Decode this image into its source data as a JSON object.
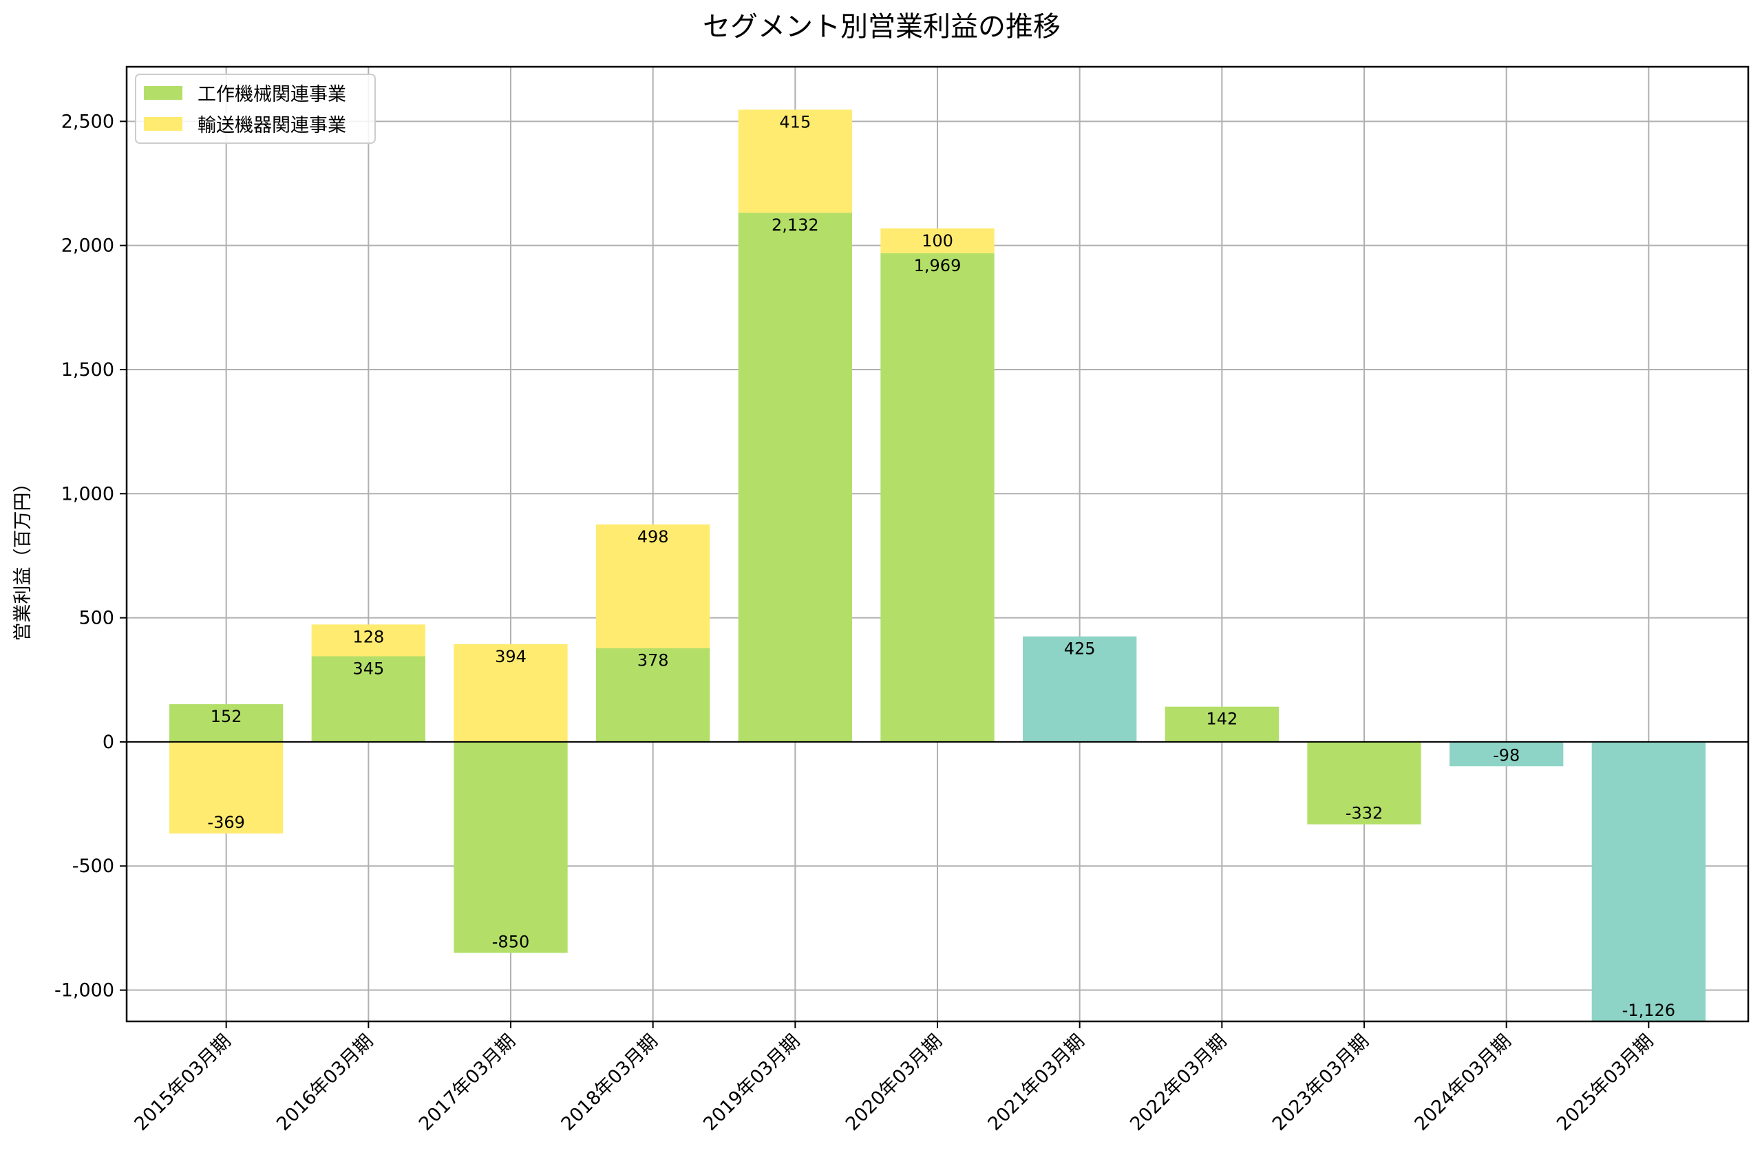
{
  "chart_data": {
    "type": "bar",
    "stacked": true,
    "title": "セグメント別営業利益の推移",
    "xlabel": "",
    "ylabel": "営業利益（百万円）",
    "ylim": [
      -1126,
      2720
    ],
    "yticks": [
      -1000,
      -500,
      0,
      500,
      1000,
      1500,
      2000,
      2500
    ],
    "ytick_labels": [
      "-1,000",
      "-500",
      "0",
      "500",
      "1,000",
      "1,500",
      "2,000",
      "2,500"
    ],
    "grid": true,
    "legend_position": "top-left",
    "categories": [
      "2015年03月期",
      "2016年03月期",
      "2017年03月期",
      "2018年03月期",
      "2019年03月期",
      "2020年03月期",
      "2021年03月期",
      "2022年03月期",
      "2023年03月期",
      "2024年03月期",
      "2025年03月期"
    ],
    "series": [
      {
        "name": "工作機械関連事業",
        "color": "#b3df68",
        "values": [
          152,
          345,
          -850,
          378,
          2132,
          1969,
          null,
          142,
          -332,
          null,
          null
        ],
        "labels": [
          "152",
          "345",
          "-850",
          "378",
          "2,132",
          "1,969",
          "",
          "142",
          "-332",
          "",
          ""
        ]
      },
      {
        "name": "輸送機器関連事業",
        "color": "#ffeb70",
        "values": [
          -369,
          128,
          394,
          498,
          415,
          100,
          null,
          null,
          null,
          null,
          null
        ],
        "labels": [
          "-369",
          "128",
          "394",
          "498",
          "415",
          "100",
          "",
          "",
          "",
          "",
          ""
        ]
      },
      {
        "name": "合計",
        "color": "#8dd4c6",
        "in_legend": false,
        "values": [
          null,
          null,
          null,
          null,
          null,
          null,
          425,
          null,
          null,
          -98,
          -1126
        ],
        "labels": [
          "",
          "",
          "",
          "",
          "",
          "",
          "425",
          "",
          "",
          "-98",
          "-1,126"
        ]
      }
    ]
  }
}
